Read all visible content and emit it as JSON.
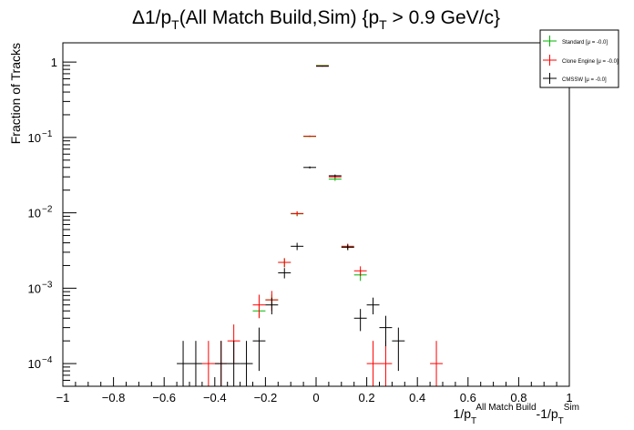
{
  "chart_data": {
    "type": "scatter",
    "title": {
      "main": "Δ1/p",
      "sub1": "T",
      "mid": "(All Match Build,Sim) {p",
      "sub2": "T",
      "tail": " > 0.9 GeV/c}"
    },
    "ylabel": "Fraction of Tracks",
    "xlabel": {
      "a": "1/p",
      "a_sub": "T",
      "a_sup": "All Match Build",
      "b": "-1/p",
      "b_sub": "T",
      "b_sup": "Sim"
    },
    "xlim": [
      -1,
      1
    ],
    "ylim": [
      5e-05,
      1.8
    ],
    "yscale": "log",
    "bin_half_width": 0.025,
    "x_ticks": [
      {
        "v": -1,
        "t": "−1"
      },
      {
        "v": -0.8,
        "t": "−0.8"
      },
      {
        "v": -0.6,
        "t": "−0.6"
      },
      {
        "v": -0.4,
        "t": "−0.4"
      },
      {
        "v": -0.2,
        "t": "−0.2"
      },
      {
        "v": 0,
        "t": "0"
      },
      {
        "v": 0.2,
        "t": "0.2"
      },
      {
        "v": 0.4,
        "t": "0.4"
      },
      {
        "v": 0.6,
        "t": "0.6"
      },
      {
        "v": 0.8,
        "t": "0.8"
      },
      {
        "v": 1,
        "t": "1"
      }
    ],
    "y_ticks": [
      {
        "v": 1,
        "base": "1",
        "exp": ""
      },
      {
        "v": 0.1,
        "base": "10",
        "exp": "−1"
      },
      {
        "v": 0.01,
        "base": "10",
        "exp": "−2"
      },
      {
        "v": 0.001,
        "base": "10",
        "exp": "−3"
      },
      {
        "v": 0.0001,
        "base": "10",
        "exp": "−4"
      }
    ],
    "series": [
      {
        "name": "Standard  [μ = -0.0]",
        "color": "#00b400",
        "points": [
          {
            "x": -0.225,
            "y": 0.0005,
            "el": 9e-05,
            "eh": 9e-05
          },
          {
            "x": -0.175,
            "y": 0.0007,
            "el": 0.00012,
            "eh": 0.00012
          },
          {
            "x": -0.125,
            "y": 0.0022,
            "el": 0.0003,
            "eh": 0.0003
          },
          {
            "x": -0.075,
            "y": 0.0097,
            "el": 0.0007,
            "eh": 0.0007
          },
          {
            "x": -0.025,
            "y": 0.103,
            "el": 0.002,
            "eh": 0.002
          },
          {
            "x": 0.025,
            "y": 0.9,
            "el": 0.01,
            "eh": 0.01
          },
          {
            "x": 0.075,
            "y": 0.028,
            "el": 0.0015,
            "eh": 0.0015
          },
          {
            "x": 0.125,
            "y": 0.0035,
            "el": 0.0003,
            "eh": 0.0003
          },
          {
            "x": 0.175,
            "y": 0.0015,
            "el": 0.00025,
            "eh": 0.00025
          }
        ]
      },
      {
        "name": "Clone Engine  [μ = -0.0]",
        "color": "#ff0000",
        "points": [
          {
            "x": -0.425,
            "y": 0.0001,
            "el": 6e-05,
            "eh": 0.0001
          },
          {
            "x": -0.375,
            "y": 0.0001,
            "el": 6e-05,
            "eh": 0.0001
          },
          {
            "x": -0.325,
            "y": 0.0002,
            "el": 0.0001,
            "eh": 0.00013
          },
          {
            "x": -0.225,
            "y": 0.0006,
            "el": 0.0002,
            "eh": 0.00022
          },
          {
            "x": -0.175,
            "y": 0.0007,
            "el": 0.0002,
            "eh": 0.00022
          },
          {
            "x": -0.125,
            "y": 0.0022,
            "el": 0.0003,
            "eh": 0.0003
          },
          {
            "x": -0.075,
            "y": 0.0098,
            "el": 0.0007,
            "eh": 0.0007
          },
          {
            "x": -0.025,
            "y": 0.104,
            "el": 0.002,
            "eh": 0.002
          },
          {
            "x": 0.025,
            "y": 0.89,
            "el": 0.01,
            "eh": 0.01
          },
          {
            "x": 0.075,
            "y": 0.03,
            "el": 0.0015,
            "eh": 0.0015
          },
          {
            "x": 0.125,
            "y": 0.0036,
            "el": 0.0003,
            "eh": 0.0003
          },
          {
            "x": 0.175,
            "y": 0.0017,
            "el": 0.00025,
            "eh": 0.00025
          },
          {
            "x": 0.225,
            "y": 0.0001,
            "el": 6e-05,
            "eh": 0.0001
          },
          {
            "x": 0.275,
            "y": 0.0001,
            "el": 6e-05,
            "eh": 0.0001
          },
          {
            "x": 0.475,
            "y": 0.0001,
            "el": 6e-05,
            "eh": 0.0001
          }
        ]
      },
      {
        "name": "CMSSW  [μ = -0.0]",
        "color": "#000000",
        "points": [
          {
            "x": -0.525,
            "y": 0.0001,
            "el": 6e-05,
            "eh": 0.0001
          },
          {
            "x": -0.475,
            "y": 0.0001,
            "el": 6e-05,
            "eh": 0.0001
          },
          {
            "x": -0.375,
            "y": 0.0001,
            "el": 6e-05,
            "eh": 0.0001
          },
          {
            "x": -0.325,
            "y": 0.0001,
            "el": 6e-05,
            "eh": 0.0001
          },
          {
            "x": -0.275,
            "y": 0.0001,
            "el": 6e-05,
            "eh": 0.0001
          },
          {
            "x": -0.225,
            "y": 0.0002,
            "el": 0.00012,
            "eh": 0.0001
          },
          {
            "x": -0.175,
            "y": 0.0006,
            "el": 0.00015,
            "eh": 0.00015
          },
          {
            "x": -0.125,
            "y": 0.0016,
            "el": 0.00025,
            "eh": 0.00025
          },
          {
            "x": -0.075,
            "y": 0.0036,
            "el": 0.0004,
            "eh": 0.0004
          },
          {
            "x": -0.025,
            "y": 0.04,
            "el": 0.0013,
            "eh": 0.0013
          },
          {
            "x": 0.025,
            "y": 0.88,
            "el": 0.01,
            "eh": 0.01
          },
          {
            "x": 0.075,
            "y": 0.031,
            "el": 0.0012,
            "eh": 0.0012
          },
          {
            "x": 0.125,
            "y": 0.0035,
            "el": 0.0003,
            "eh": 0.0003
          },
          {
            "x": 0.175,
            "y": 0.0004,
            "el": 0.00013,
            "eh": 0.00013
          },
          {
            "x": 0.225,
            "y": 0.0006,
            "el": 0.00015,
            "eh": 0.00015
          },
          {
            "x": 0.275,
            "y": 0.0003,
            "el": 0.00013,
            "eh": 0.00013
          },
          {
            "x": 0.325,
            "y": 0.0002,
            "el": 0.00012,
            "eh": 0.0001
          }
        ]
      }
    ],
    "legend": {
      "placement": "top-right"
    }
  }
}
